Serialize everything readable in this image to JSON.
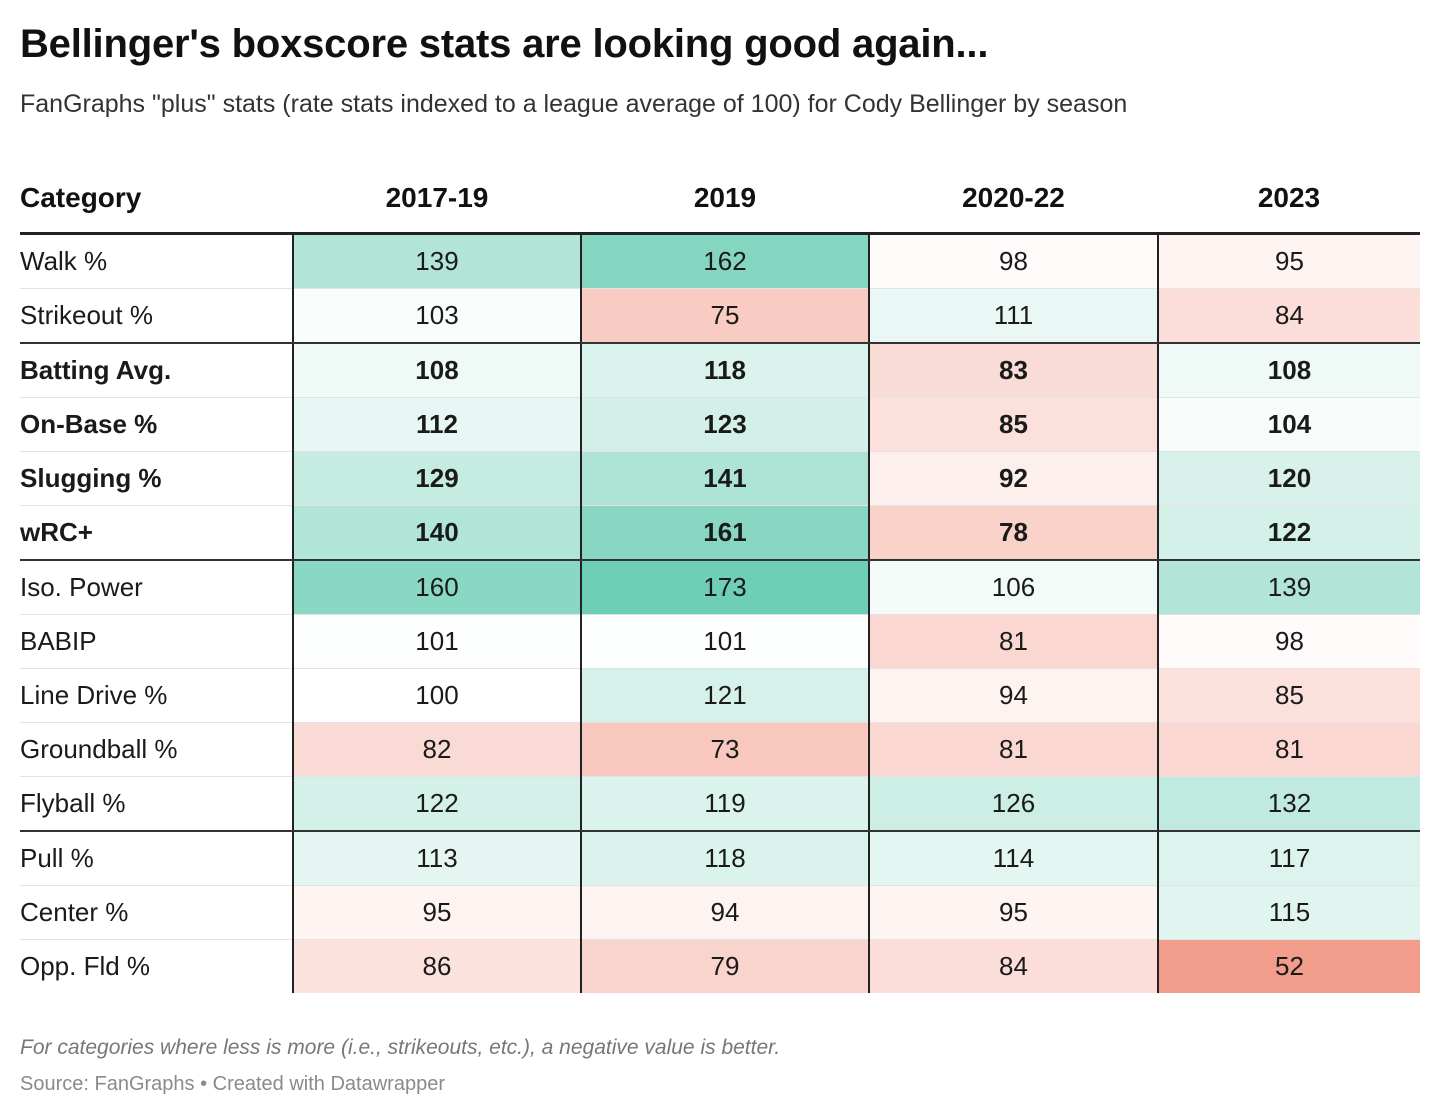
{
  "header": {
    "title": "Bellinger's boxscore stats are looking good again...",
    "subtitle": "FanGraphs \"plus\" stats (rate stats indexed to a league average of 100) for Cody Bellinger by season"
  },
  "footer": {
    "note": "For categories where less is more (i.e., strikeouts, etc.), a negative value is better.",
    "source": "Source: FanGraphs • Created with Datawrapper"
  },
  "colors": {
    "good_max": "#6fcfb6",
    "neutral": "#ffffff",
    "bad_max": "#f29d8c"
  },
  "chart_data": {
    "type": "table",
    "title": "Bellinger's boxscore stats are looking good again...",
    "subtitle": "FanGraphs \"plus\" stats (rate stats indexed to a league average of 100) for Cody Bellinger by season",
    "columns": [
      "Category",
      "2017-19",
      "2019",
      "2020-22",
      "2023"
    ],
    "rows": [
      {
        "category": "Walk %",
        "values": [
          139,
          162,
          98,
          95
        ],
        "bold": false,
        "group_end": false
      },
      {
        "category": "Strikeout %",
        "values": [
          103,
          75,
          111,
          84
        ],
        "bold": false,
        "group_end": true
      },
      {
        "category": "Batting Avg.",
        "values": [
          108,
          118,
          83,
          108
        ],
        "bold": true,
        "group_end": false
      },
      {
        "category": "On-Base %",
        "values": [
          112,
          123,
          85,
          104
        ],
        "bold": true,
        "group_end": false
      },
      {
        "category": "Slugging %",
        "values": [
          129,
          141,
          92,
          120
        ],
        "bold": true,
        "group_end": false
      },
      {
        "category": "wRC+",
        "values": [
          140,
          161,
          78,
          122
        ],
        "bold": true,
        "group_end": true
      },
      {
        "category": "Iso. Power",
        "values": [
          160,
          173,
          106,
          139
        ],
        "bold": false,
        "group_end": false
      },
      {
        "category": "BABIP",
        "values": [
          101,
          101,
          81,
          98
        ],
        "bold": false,
        "group_end": false
      },
      {
        "category": "Line Drive %",
        "values": [
          100,
          121,
          94,
          85
        ],
        "bold": false,
        "group_end": false
      },
      {
        "category": "Groundball %",
        "values": [
          82,
          73,
          81,
          81
        ],
        "bold": false,
        "group_end": false
      },
      {
        "category": "Flyball %",
        "values": [
          122,
          119,
          126,
          132
        ],
        "bold": false,
        "group_end": true
      },
      {
        "category": "Pull %",
        "values": [
          113,
          118,
          114,
          117
        ],
        "bold": false,
        "group_end": false
      },
      {
        "category": "Center %",
        "values": [
          95,
          94,
          95,
          115
        ],
        "bold": false,
        "group_end": false
      },
      {
        "category": "Opp. Fld %",
        "values": [
          86,
          79,
          84,
          52
        ],
        "bold": false,
        "group_end": false
      }
    ]
  }
}
